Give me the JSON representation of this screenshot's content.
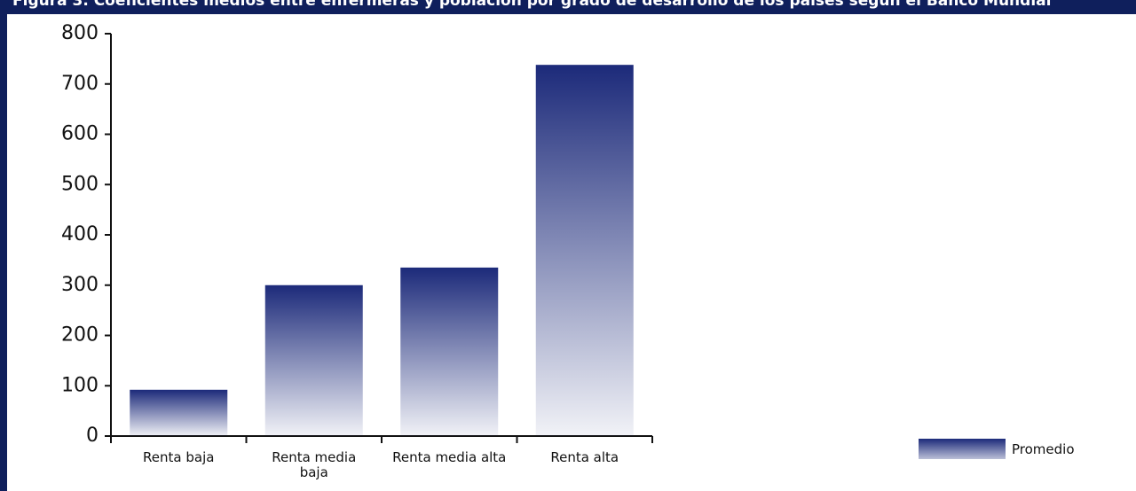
{
  "chart_data": {
    "type": "bar",
    "title": "Figura 3. Coeficientes medios entre enfermeras y población por grado de desarrollo de los países según el Banco Mundial",
    "categories": [
      "Renta baja",
      "Renta media baja",
      "Renta media alta",
      "Renta alta"
    ],
    "series": [
      {
        "name": "Promedio",
        "color": "#1c2a7a",
        "values": [
          92,
          300,
          335,
          738
        ]
      }
    ],
    "ylim": [
      0,
      800
    ],
    "yticks": [
      0,
      100,
      200,
      300,
      400,
      500,
      600,
      700,
      800
    ],
    "legend": "bottom-right"
  }
}
